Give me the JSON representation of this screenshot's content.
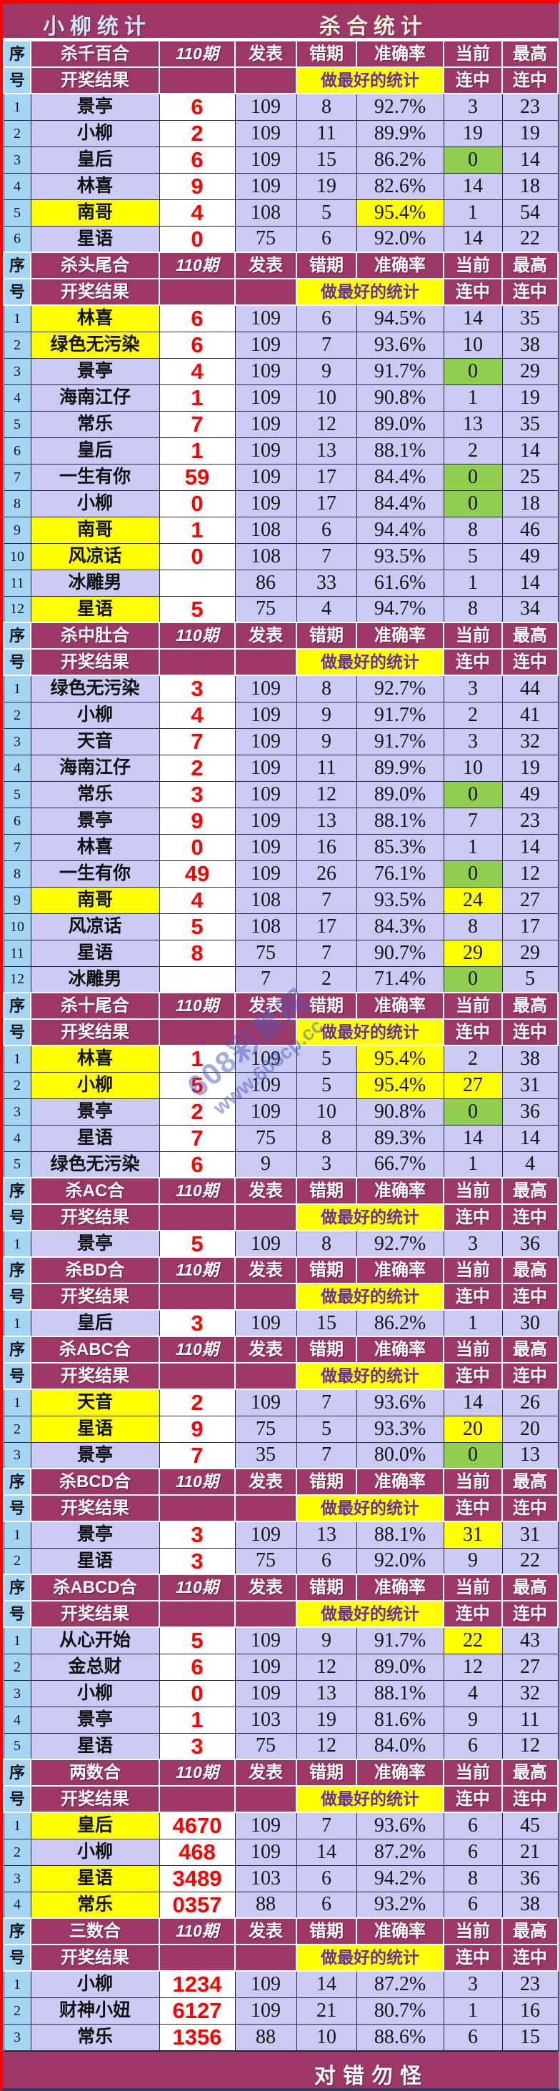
{
  "page_title": {
    "left": "小柳统计",
    "center": "杀合统计"
  },
  "column_headers": {
    "index_top": "序",
    "index_bottom": "号",
    "periods": "110期",
    "published": "发表",
    "wrong_periods": "错期",
    "accuracy": "准确率",
    "current": "当前",
    "highest": "最高",
    "result_label": "开奖结果",
    "slogan": "做最好的统计",
    "streak": "连中"
  },
  "footer": {
    "text": "对错勿怪"
  },
  "watermark": {
    "line1": "608彩票网",
    "line2": "www.608cp.cc"
  },
  "colors": {
    "maroon_header": "#9c3768",
    "lavender_cell": "#cbcaf5",
    "index_blue": "#a5d5f5",
    "highlight_yellow": "#ffff00",
    "highlight_green": "#8fce4e",
    "kill_value_red": "#ff0000",
    "slogan_purple": "#6a2fa0",
    "outer_border_red": "#ff0000",
    "title_left_color": "#cfe7f6",
    "title_center_color": "#fbf3d5"
  },
  "sections": [
    {
      "title": "杀千百合",
      "rows": [
        {
          "idx": "1",
          "name": "景亭",
          "kill": "6",
          "pub": "109",
          "wrong": "8",
          "acc": "92.7%",
          "cur": "3",
          "max": "23"
        },
        {
          "idx": "2",
          "name": "小柳",
          "kill": "2",
          "pub": "109",
          "wrong": "11",
          "acc": "89.9%",
          "cur": "19",
          "max": "19"
        },
        {
          "idx": "3",
          "name": "皇后",
          "kill": "6",
          "pub": "109",
          "wrong": "15",
          "acc": "86.2%",
          "cur": "0",
          "max": "14",
          "cur_hl": "green"
        },
        {
          "idx": "4",
          "name": "林喜",
          "kill": "9",
          "pub": "109",
          "wrong": "19",
          "acc": "82.6%",
          "cur": "14",
          "max": "18"
        },
        {
          "idx": "5",
          "name": "南哥",
          "kill": "4",
          "pub": "108",
          "wrong": "5",
          "acc": "95.4%",
          "cur": "1",
          "max": "54",
          "name_hl": true,
          "acc_hl": true
        },
        {
          "idx": "6",
          "name": "星语",
          "kill": "0",
          "pub": "75",
          "wrong": "6",
          "acc": "92.0%",
          "cur": "14",
          "max": "22"
        }
      ]
    },
    {
      "title": "杀头尾合",
      "rows": [
        {
          "idx": "1",
          "name": "林喜",
          "kill": "6",
          "pub": "109",
          "wrong": "6",
          "acc": "94.5%",
          "cur": "14",
          "max": "35",
          "name_hl": true
        },
        {
          "idx": "2",
          "name": "绿色无污染",
          "kill": "6",
          "pub": "109",
          "wrong": "7",
          "acc": "93.6%",
          "cur": "10",
          "max": "38",
          "name_hl": true
        },
        {
          "idx": "3",
          "name": "景亭",
          "kill": "4",
          "pub": "109",
          "wrong": "9",
          "acc": "91.7%",
          "cur": "0",
          "max": "29",
          "cur_hl": "green"
        },
        {
          "idx": "4",
          "name": "海南江仔",
          "kill": "1",
          "pub": "109",
          "wrong": "10",
          "acc": "90.8%",
          "cur": "1",
          "max": "19"
        },
        {
          "idx": "5",
          "name": "常乐",
          "kill": "7",
          "pub": "109",
          "wrong": "12",
          "acc": "89.0%",
          "cur": "13",
          "max": "35"
        },
        {
          "idx": "6",
          "name": "皇后",
          "kill": "1",
          "pub": "109",
          "wrong": "13",
          "acc": "88.1%",
          "cur": "2",
          "max": "14"
        },
        {
          "idx": "7",
          "name": "一生有你",
          "kill": "59",
          "pub": "109",
          "wrong": "17",
          "acc": "84.4%",
          "cur": "0",
          "max": "25",
          "cur_hl": "green"
        },
        {
          "idx": "8",
          "name": "小柳",
          "kill": "0",
          "pub": "109",
          "wrong": "17",
          "acc": "84.4%",
          "cur": "0",
          "max": "18",
          "cur_hl": "green"
        },
        {
          "idx": "9",
          "name": "南哥",
          "kill": "1",
          "pub": "108",
          "wrong": "6",
          "acc": "94.4%",
          "cur": "8",
          "max": "46",
          "name_hl": true
        },
        {
          "idx": "10",
          "name": "风凉话",
          "kill": "0",
          "pub": "108",
          "wrong": "7",
          "acc": "93.5%",
          "cur": "5",
          "max": "49",
          "name_hl": true
        },
        {
          "idx": "11",
          "name": "冰雕男",
          "kill": "",
          "pub": "86",
          "wrong": "33",
          "acc": "61.6%",
          "cur": "1",
          "max": "14"
        },
        {
          "idx": "12",
          "name": "星语",
          "kill": "5",
          "pub": "75",
          "wrong": "4",
          "acc": "94.7%",
          "cur": "8",
          "max": "34",
          "name_hl": true
        }
      ]
    },
    {
      "title": "杀中肚合",
      "rows": [
        {
          "idx": "1",
          "name": "绿色无污染",
          "kill": "3",
          "pub": "109",
          "wrong": "8",
          "acc": "92.7%",
          "cur": "3",
          "max": "44"
        },
        {
          "idx": "2",
          "name": "小柳",
          "kill": "4",
          "pub": "109",
          "wrong": "9",
          "acc": "91.7%",
          "cur": "2",
          "max": "41"
        },
        {
          "idx": "3",
          "name": "天音",
          "kill": "7",
          "pub": "109",
          "wrong": "9",
          "acc": "91.7%",
          "cur": "3",
          "max": "32"
        },
        {
          "idx": "4",
          "name": "海南江仔",
          "kill": "2",
          "pub": "109",
          "wrong": "11",
          "acc": "89.9%",
          "cur": "10",
          "max": "19"
        },
        {
          "idx": "5",
          "name": "常乐",
          "kill": "3",
          "pub": "109",
          "wrong": "12",
          "acc": "89.0%",
          "cur": "0",
          "max": "49",
          "cur_hl": "green"
        },
        {
          "idx": "6",
          "name": "景亭",
          "kill": "9",
          "pub": "109",
          "wrong": "13",
          "acc": "88.1%",
          "cur": "7",
          "max": "23"
        },
        {
          "idx": "7",
          "name": "林喜",
          "kill": "0",
          "pub": "109",
          "wrong": "16",
          "acc": "85.3%",
          "cur": "1",
          "max": "14"
        },
        {
          "idx": "8",
          "name": "一生有你",
          "kill": "49",
          "pub": "109",
          "wrong": "26",
          "acc": "76.1%",
          "cur": "0",
          "max": "12",
          "cur_hl": "green"
        },
        {
          "idx": "9",
          "name": "南哥",
          "kill": "4",
          "pub": "108",
          "wrong": "7",
          "acc": "93.5%",
          "cur": "24",
          "max": "27",
          "name_hl": true,
          "cur_hl": "yellow"
        },
        {
          "idx": "10",
          "name": "风凉话",
          "kill": "5",
          "pub": "108",
          "wrong": "17",
          "acc": "84.3%",
          "cur": "8",
          "max": "17"
        },
        {
          "idx": "11",
          "name": "星语",
          "kill": "8",
          "pub": "75",
          "wrong": "7",
          "acc": "90.7%",
          "cur": "29",
          "max": "29",
          "cur_hl": "yellow"
        },
        {
          "idx": "12",
          "name": "冰雕男",
          "kill": "",
          "pub": "7",
          "wrong": "2",
          "acc": "71.4%",
          "cur": "0",
          "max": "5",
          "cur_hl": "green"
        }
      ]
    },
    {
      "title": "杀十尾合",
      "rows": [
        {
          "idx": "1",
          "name": "林喜",
          "kill": "1",
          "pub": "109",
          "wrong": "5",
          "acc": "95.4%",
          "cur": "2",
          "max": "38",
          "name_hl": true,
          "acc_hl": true
        },
        {
          "idx": "2",
          "name": "小柳",
          "kill": "5",
          "pub": "109",
          "wrong": "5",
          "acc": "95.4%",
          "cur": "27",
          "max": "31",
          "name_hl": true,
          "acc_hl": true,
          "cur_hl": "yellow"
        },
        {
          "idx": "3",
          "name": "景亭",
          "kill": "2",
          "pub": "109",
          "wrong": "10",
          "acc": "90.8%",
          "cur": "0",
          "max": "36",
          "cur_hl": "green"
        },
        {
          "idx": "4",
          "name": "星语",
          "kill": "7",
          "pub": "75",
          "wrong": "8",
          "acc": "89.3%",
          "cur": "14",
          "max": "14"
        },
        {
          "idx": "5",
          "name": "绿色无污染",
          "kill": "6",
          "pub": "9",
          "wrong": "3",
          "acc": "66.7%",
          "cur": "1",
          "max": "4"
        }
      ]
    },
    {
      "title": "杀AC合",
      "rows": [
        {
          "idx": "1",
          "name": "景亭",
          "kill": "5",
          "pub": "109",
          "wrong": "8",
          "acc": "92.7%",
          "cur": "3",
          "max": "36"
        }
      ]
    },
    {
      "title": "杀BD合",
      "rows": [
        {
          "idx": "1",
          "name": "皇后",
          "kill": "3",
          "pub": "109",
          "wrong": "15",
          "acc": "86.2%",
          "cur": "1",
          "max": "30"
        }
      ]
    },
    {
      "title": "杀ABC合",
      "rows": [
        {
          "idx": "1",
          "name": "天音",
          "kill": "2",
          "pub": "109",
          "wrong": "7",
          "acc": "93.6%",
          "cur": "14",
          "max": "26",
          "name_hl": true
        },
        {
          "idx": "2",
          "name": "星语",
          "kill": "9",
          "pub": "75",
          "wrong": "5",
          "acc": "93.3%",
          "cur": "20",
          "max": "20",
          "name_hl": true,
          "cur_hl": "yellow"
        },
        {
          "idx": "3",
          "name": "景亭",
          "kill": "7",
          "pub": "35",
          "wrong": "7",
          "acc": "80.0%",
          "cur": "0",
          "max": "13",
          "cur_hl": "green"
        }
      ]
    },
    {
      "title": "杀BCD合",
      "rows": [
        {
          "idx": "1",
          "name": "景亭",
          "kill": "3",
          "pub": "109",
          "wrong": "13",
          "acc": "88.1%",
          "cur": "31",
          "max": "31",
          "cur_hl": "yellow"
        },
        {
          "idx": "2",
          "name": "星语",
          "kill": "3",
          "pub": "75",
          "wrong": "6",
          "acc": "92.0%",
          "cur": "9",
          "max": "22"
        }
      ]
    },
    {
      "title": "杀ABCD合",
      "rows": [
        {
          "idx": "1",
          "name": "从心开始",
          "kill": "5",
          "pub": "109",
          "wrong": "9",
          "acc": "91.7%",
          "cur": "22",
          "max": "43",
          "cur_hl": "yellow"
        },
        {
          "idx": "2",
          "name": "金总财",
          "kill": "6",
          "pub": "109",
          "wrong": "12",
          "acc": "89.0%",
          "cur": "12",
          "max": "27"
        },
        {
          "idx": "3",
          "name": "小柳",
          "kill": "0",
          "pub": "109",
          "wrong": "13",
          "acc": "88.1%",
          "cur": "4",
          "max": "32"
        },
        {
          "idx": "4",
          "name": "景亭",
          "kill": "1",
          "pub": "103",
          "wrong": "19",
          "acc": "81.6%",
          "cur": "9",
          "max": "11"
        },
        {
          "idx": "5",
          "name": "星语",
          "kill": "3",
          "pub": "75",
          "wrong": "12",
          "acc": "84.0%",
          "cur": "6",
          "max": "12"
        }
      ]
    },
    {
      "title": "两数合",
      "rows": [
        {
          "idx": "1",
          "name": "皇后",
          "kill": "4670",
          "pub": "109",
          "wrong": "7",
          "acc": "93.6%",
          "cur": "6",
          "max": "45",
          "name_hl": true
        },
        {
          "idx": "2",
          "name": "小柳",
          "kill": "468",
          "pub": "109",
          "wrong": "14",
          "acc": "87.2%",
          "cur": "6",
          "max": "21"
        },
        {
          "idx": "3",
          "name": "星语",
          "kill": "3489",
          "pub": "103",
          "wrong": "6",
          "acc": "94.2%",
          "cur": "8",
          "max": "36",
          "name_hl": true
        },
        {
          "idx": "4",
          "name": "常乐",
          "kill": "0357",
          "pub": "88",
          "wrong": "6",
          "acc": "93.2%",
          "cur": "6",
          "max": "38",
          "name_hl": true
        }
      ]
    },
    {
      "title": "三数合",
      "rows": [
        {
          "idx": "1",
          "name": "小柳",
          "kill": "1234",
          "pub": "109",
          "wrong": "14",
          "acc": "87.2%",
          "cur": "3",
          "max": "23"
        },
        {
          "idx": "2",
          "name": "财神小妞",
          "kill": "6127",
          "pub": "109",
          "wrong": "21",
          "acc": "80.7%",
          "cur": "1",
          "max": "16"
        },
        {
          "idx": "3",
          "name": "常乐",
          "kill": "1356",
          "pub": "88",
          "wrong": "10",
          "acc": "88.6%",
          "cur": "6",
          "max": "15"
        }
      ]
    }
  ]
}
